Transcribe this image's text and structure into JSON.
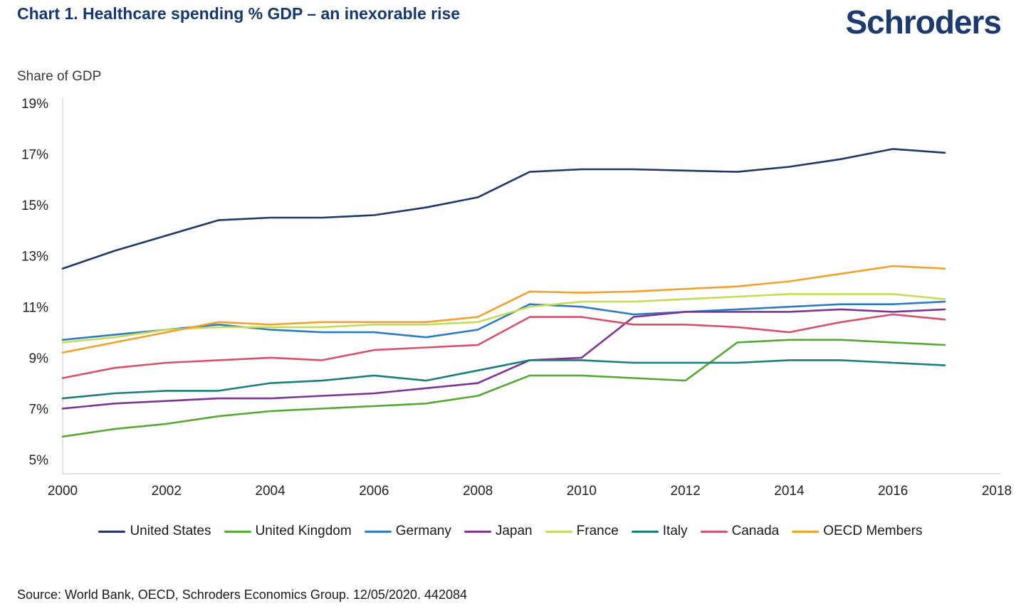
{
  "header": {
    "title": "Chart 1. Healthcare spending % GDP – an inexorable rise",
    "logo": "Schroders"
  },
  "source": "Source: World Bank, OECD, Schroders Economics Group. 12/05/2020. 442084",
  "chart_data": {
    "type": "line",
    "title": "Chart 1. Healthcare spending % GDP – an inexorable rise",
    "ylabel": "Share of GDP",
    "xlabel": "",
    "grid": false,
    "legend_position": "bottom",
    "ylim": [
      5,
      19
    ],
    "xlim": [
      2000,
      2018
    ],
    "y_ticks": [
      19,
      17,
      15,
      13,
      11,
      9,
      7,
      5
    ],
    "y_tick_suffix": "%",
    "x_ticks": [
      2000,
      2002,
      2004,
      2006,
      2008,
      2010,
      2012,
      2014,
      2016,
      2018
    ],
    "x": [
      2000,
      2001,
      2002,
      2003,
      2004,
      2005,
      2006,
      2007,
      2008,
      2009,
      2010,
      2011,
      2012,
      2013,
      2014,
      2015,
      2016,
      2017
    ],
    "series": [
      {
        "name": "United States",
        "color": "#1f3864",
        "values": [
          12.5,
          13.2,
          13.8,
          14.4,
          14.5,
          14.5,
          14.6,
          14.9,
          15.3,
          16.3,
          16.4,
          16.4,
          16.35,
          16.3,
          16.5,
          16.8,
          17.2,
          17.05
        ]
      },
      {
        "name": "United Kingdom",
        "color": "#56a836",
        "values": [
          5.9,
          6.2,
          6.4,
          6.7,
          6.9,
          7.0,
          7.1,
          7.2,
          7.5,
          8.3,
          8.3,
          8.2,
          8.1,
          9.6,
          9.7,
          9.7,
          9.6,
          9.5
        ]
      },
      {
        "name": "Germany",
        "color": "#2d7cc1",
        "values": [
          9.7,
          9.9,
          10.1,
          10.3,
          10.1,
          10.0,
          10.0,
          9.8,
          10.1,
          11.1,
          11.0,
          10.7,
          10.8,
          10.9,
          11.0,
          11.1,
          11.1,
          11.2
        ]
      },
      {
        "name": "Japan",
        "color": "#7d3594",
        "values": [
          7.0,
          7.2,
          7.3,
          7.4,
          7.4,
          7.5,
          7.6,
          7.8,
          8.0,
          8.9,
          9.0,
          10.6,
          10.8,
          10.8,
          10.8,
          10.9,
          10.8,
          10.9
        ]
      },
      {
        "name": "France",
        "color": "#c6db57",
        "values": [
          9.6,
          9.8,
          10.1,
          10.2,
          10.2,
          10.2,
          10.3,
          10.3,
          10.4,
          11.0,
          11.2,
          11.2,
          11.3,
          11.4,
          11.5,
          11.5,
          11.5,
          11.3
        ]
      },
      {
        "name": "Italy",
        "color": "#1b7e79",
        "values": [
          7.4,
          7.6,
          7.7,
          7.7,
          8.0,
          8.1,
          8.3,
          8.1,
          8.5,
          8.9,
          8.9,
          8.8,
          8.8,
          8.8,
          8.9,
          8.9,
          8.8,
          8.7
        ]
      },
      {
        "name": "Canada",
        "color": "#d8516a",
        "values": [
          8.2,
          8.6,
          8.8,
          8.9,
          9.0,
          8.9,
          9.3,
          9.4,
          9.5,
          10.6,
          10.6,
          10.3,
          10.3,
          10.2,
          10.0,
          10.4,
          10.7,
          10.5
        ]
      },
      {
        "name": "OECD Members",
        "color": "#f0a22a",
        "values": [
          9.2,
          9.6,
          10.0,
          10.4,
          10.3,
          10.4,
          10.4,
          10.4,
          10.6,
          11.6,
          11.55,
          11.6,
          11.7,
          11.8,
          12.0,
          12.3,
          12.6,
          12.5
        ]
      }
    ]
  }
}
